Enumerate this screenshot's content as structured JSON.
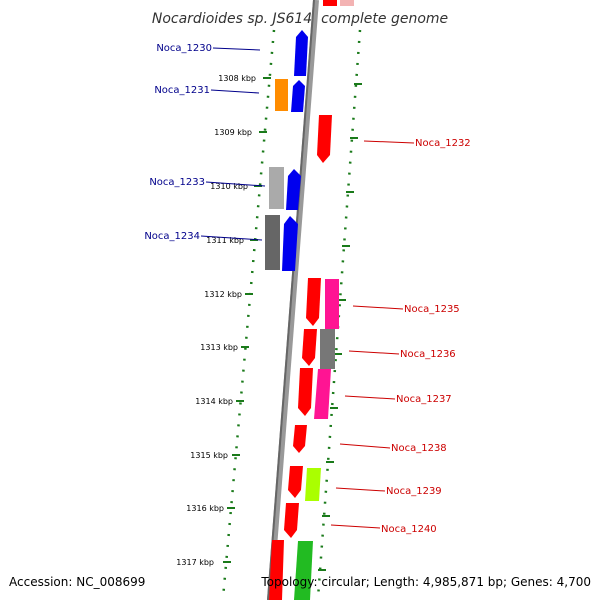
{
  "title": "Nocardioides sp. JS614, complete genome",
  "footer": {
    "accession": "Accession: NC_008699",
    "topology": "Topology: circular; Length: 4,985,871 bp; Genes: 4,700"
  },
  "colors": {
    "forward_label": "#00008b",
    "reverse_label": "#cc0000",
    "backbone": "#777777",
    "tick_dots": "#1a7a1a"
  },
  "ticks": [
    {
      "label": "1308 kbp"
    },
    {
      "label": "1309 kbp"
    },
    {
      "label": "1310 kbp"
    },
    {
      "label": "1311 kbp"
    },
    {
      "label": "1312 kbp"
    },
    {
      "label": "1313 kbp"
    },
    {
      "label": "1314 kbp"
    },
    {
      "label": "1315 kbp"
    },
    {
      "label": "1316 kbp"
    },
    {
      "label": "1317 kbp"
    }
  ],
  "gene_labels": [
    {
      "name": "Noca_1230",
      "strand": "forward"
    },
    {
      "name": "Noca_1231",
      "strand": "forward"
    },
    {
      "name": "Noca_1232",
      "strand": "reverse"
    },
    {
      "name": "Noca_1233",
      "strand": "forward"
    },
    {
      "name": "Noca_1234",
      "strand": "forward"
    },
    {
      "name": "Noca_1235",
      "strand": "reverse"
    },
    {
      "name": "Noca_1236",
      "strand": "reverse"
    },
    {
      "name": "Noca_1237",
      "strand": "reverse"
    },
    {
      "name": "Noca_1238",
      "strand": "reverse"
    },
    {
      "name": "Noca_1239",
      "strand": "reverse"
    },
    {
      "name": "Noca_1240",
      "strand": "reverse"
    }
  ]
}
